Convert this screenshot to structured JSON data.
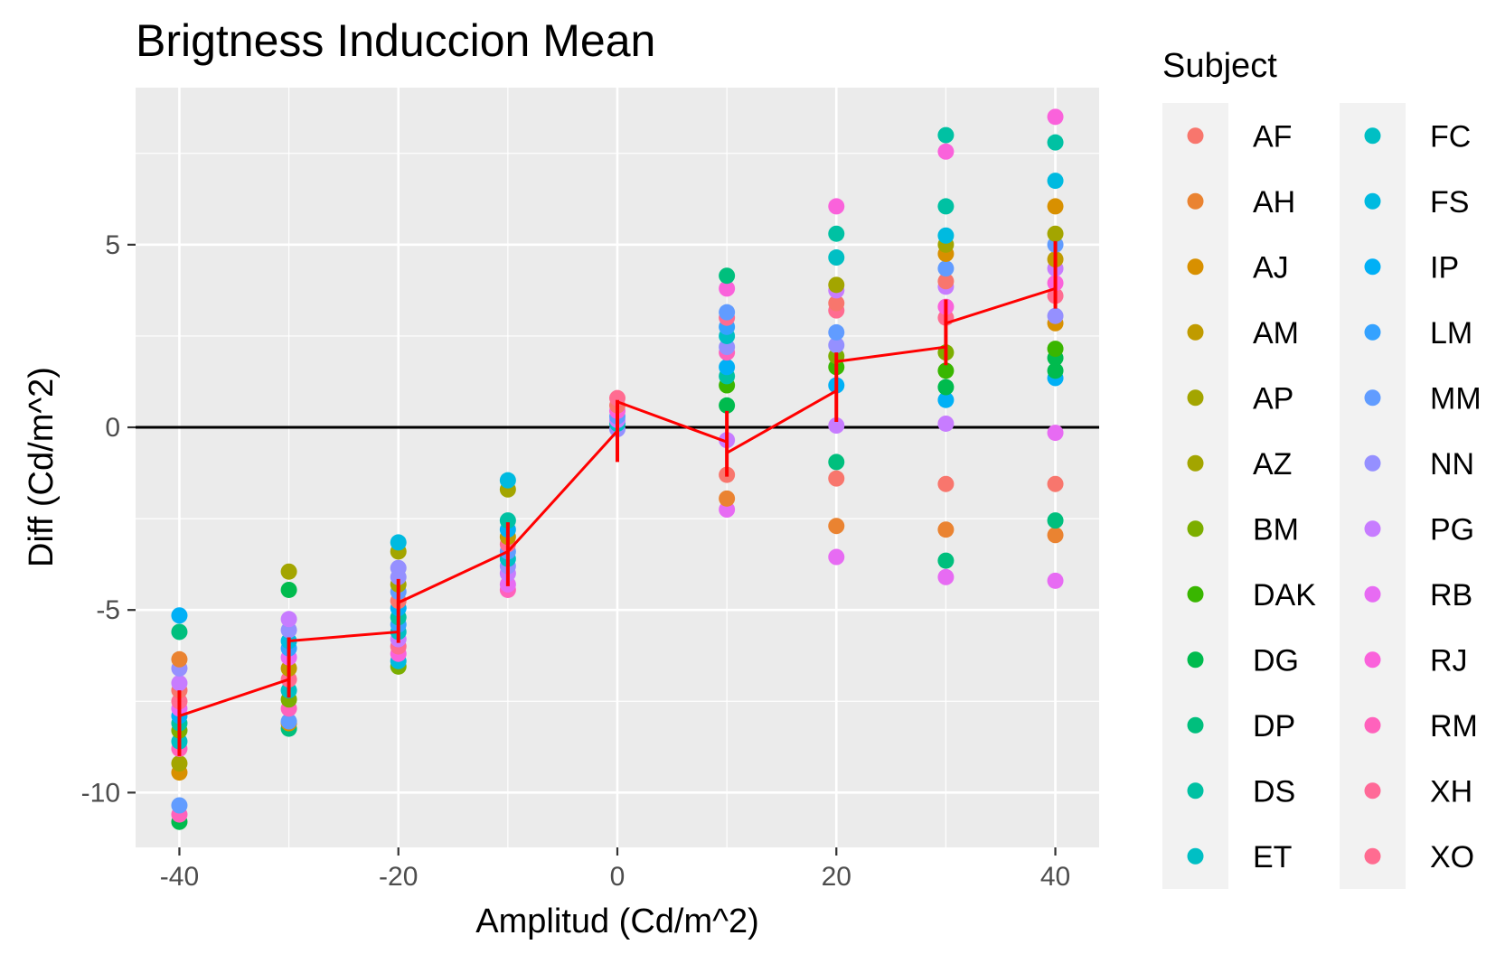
{
  "chart_data": {
    "type": "scatter",
    "title": "Brigtness Induccion Mean",
    "xlabel": "Amplitud (Cd/m^2)",
    "ylabel": "Diff (Cd/m^2)",
    "xlim": [
      -44,
      44
    ],
    "ylim": [
      -11.5,
      9.3
    ],
    "x_ticks": [
      -40,
      -20,
      0,
      20,
      40
    ],
    "x_tick_labels": [
      "-40",
      "-20",
      "0",
      "20",
      "40"
    ],
    "y_ticks": [
      -10,
      -5,
      0,
      5
    ],
    "y_tick_labels": [
      "-10",
      "-5",
      "0",
      "5"
    ],
    "grid": true,
    "reference_line_y": 0,
    "legend": {
      "title": "Subject",
      "placement": "right",
      "entries": [
        {
          "name": "AF",
          "color": "#F8766D"
        },
        {
          "name": "AH",
          "color": "#EA8331"
        },
        {
          "name": "AJ",
          "color": "#D89000"
        },
        {
          "name": "AM",
          "color": "#C09B00"
        },
        {
          "name": "AP",
          "color": "#A3A500"
        },
        {
          "name": "AZ",
          "color": "#A3A500"
        },
        {
          "name": "BM",
          "color": "#7CAE00"
        },
        {
          "name": "DAK",
          "color": "#39B600"
        },
        {
          "name": "DG",
          "color": "#00BB4E"
        },
        {
          "name": "DP",
          "color": "#00BF7D"
        },
        {
          "name": "DS",
          "color": "#00C1A3"
        },
        {
          "name": "ET",
          "color": "#00BFC4"
        },
        {
          "name": "FC",
          "color": "#00BFC4"
        },
        {
          "name": "FS",
          "color": "#00BAE0"
        },
        {
          "name": "IP",
          "color": "#00B0F6"
        },
        {
          "name": "LM",
          "color": "#35A2FF"
        },
        {
          "name": "MM",
          "color": "#619CFF"
        },
        {
          "name": "NN",
          "color": "#9590FF"
        },
        {
          "name": "PG",
          "color": "#C77CFF"
        },
        {
          "name": "RB",
          "color": "#E76BF3"
        },
        {
          "name": "RJ",
          "color": "#FA62DB"
        },
        {
          "name": "RM",
          "color": "#FF62BC"
        },
        {
          "name": "XH",
          "color": "#FF6A98"
        },
        {
          "name": "XO",
          "color": "#FF6C91"
        }
      ]
    },
    "points": [
      {
        "x": -40,
        "y": -10.8,
        "color": "#00BB4E"
      },
      {
        "x": -40,
        "y": -10.6,
        "color": "#FF62BC"
      },
      {
        "x": -40,
        "y": -10.35,
        "color": "#619CFF"
      },
      {
        "x": -40,
        "y": -9.45,
        "color": "#D89000"
      },
      {
        "x": -40,
        "y": -9.2,
        "color": "#A3A500"
      },
      {
        "x": -40,
        "y": -8.8,
        "color": "#FF62BC"
      },
      {
        "x": -40,
        "y": -8.6,
        "color": "#00BFC4"
      },
      {
        "x": -40,
        "y": -8.3,
        "color": "#7CAE00"
      },
      {
        "x": -40,
        "y": -8.1,
        "color": "#00C1A3"
      },
      {
        "x": -40,
        "y": -7.9,
        "color": "#00B0F6"
      },
      {
        "x": -40,
        "y": -7.7,
        "color": "#E76BF3"
      },
      {
        "x": -40,
        "y": -7.5,
        "color": "#FF6C91"
      },
      {
        "x": -40,
        "y": -7.2,
        "color": "#F8766D"
      },
      {
        "x": -40,
        "y": -7.0,
        "color": "#C77CFF"
      },
      {
        "x": -40,
        "y": -6.6,
        "color": "#9590FF"
      },
      {
        "x": -40,
        "y": -6.35,
        "color": "#EA8331"
      },
      {
        "x": -40,
        "y": -5.6,
        "color": "#00BF7D"
      },
      {
        "x": -40,
        "y": -5.15,
        "color": "#00B0F6"
      },
      {
        "x": -30,
        "y": -8.25,
        "color": "#00BF7D"
      },
      {
        "x": -30,
        "y": -8.1,
        "color": "#D89000"
      },
      {
        "x": -30,
        "y": -8.05,
        "color": "#619CFF"
      },
      {
        "x": -30,
        "y": -7.7,
        "color": "#FF62BC"
      },
      {
        "x": -30,
        "y": -7.45,
        "color": "#7CAE00"
      },
      {
        "x": -30,
        "y": -7.2,
        "color": "#00BFC4"
      },
      {
        "x": -30,
        "y": -6.9,
        "color": "#FF6C91"
      },
      {
        "x": -30,
        "y": -6.6,
        "color": "#C09B00"
      },
      {
        "x": -30,
        "y": -6.3,
        "color": "#E76BF3"
      },
      {
        "x": -30,
        "y": -6.05,
        "color": "#35A2FF"
      },
      {
        "x": -30,
        "y": -5.85,
        "color": "#00BAE0"
      },
      {
        "x": -30,
        "y": -5.55,
        "color": "#9590FF"
      },
      {
        "x": -30,
        "y": -5.25,
        "color": "#C77CFF"
      },
      {
        "x": -30,
        "y": -4.45,
        "color": "#00BB4E"
      },
      {
        "x": -30,
        "y": -3.95,
        "color": "#A3A500"
      },
      {
        "x": -20,
        "y": -6.55,
        "color": "#7CAE00"
      },
      {
        "x": -20,
        "y": -6.4,
        "color": "#00BAE0"
      },
      {
        "x": -20,
        "y": -6.2,
        "color": "#FA62DB"
      },
      {
        "x": -20,
        "y": -6.0,
        "color": "#FF6C91"
      },
      {
        "x": -20,
        "y": -5.8,
        "color": "#C77CFF"
      },
      {
        "x": -20,
        "y": -5.6,
        "color": "#00BFC4"
      },
      {
        "x": -20,
        "y": -5.4,
        "color": "#35A2FF"
      },
      {
        "x": -20,
        "y": -5.2,
        "color": "#00C1A3"
      },
      {
        "x": -20,
        "y": -4.95,
        "color": "#00B0F6"
      },
      {
        "x": -20,
        "y": -4.75,
        "color": "#F8766D"
      },
      {
        "x": -20,
        "y": -4.5,
        "color": "#619CFF"
      },
      {
        "x": -20,
        "y": -4.3,
        "color": "#A3A500"
      },
      {
        "x": -20,
        "y": -4.1,
        "color": "#9590FF"
      },
      {
        "x": -20,
        "y": -3.85,
        "color": "#9590FF"
      },
      {
        "x": -20,
        "y": -3.4,
        "color": "#A3A500"
      },
      {
        "x": -20,
        "y": -3.15,
        "color": "#00BAE0"
      },
      {
        "x": -10,
        "y": -4.45,
        "color": "#FF62BC"
      },
      {
        "x": -10,
        "y": -4.3,
        "color": "#E76BF3"
      },
      {
        "x": -10,
        "y": -4.0,
        "color": "#C77CFF"
      },
      {
        "x": -10,
        "y": -3.8,
        "color": "#9590FF"
      },
      {
        "x": -10,
        "y": -3.6,
        "color": "#00BFC4"
      },
      {
        "x": -10,
        "y": -3.4,
        "color": "#619CFF"
      },
      {
        "x": -10,
        "y": -3.2,
        "color": "#FF6C91"
      },
      {
        "x": -10,
        "y": -3.0,
        "color": "#C09B00"
      },
      {
        "x": -10,
        "y": -2.8,
        "color": "#00B0F6"
      },
      {
        "x": -10,
        "y": -2.55,
        "color": "#00C1A3"
      },
      {
        "x": -10,
        "y": -1.7,
        "color": "#A3A500"
      },
      {
        "x": -10,
        "y": -1.45,
        "color": "#00BAE0"
      },
      {
        "x": 0,
        "y": -0.05,
        "color": "#9590FF"
      },
      {
        "x": 0,
        "y": 0.1,
        "color": "#00BFC4"
      },
      {
        "x": 0,
        "y": 0.2,
        "color": "#C77CFF"
      },
      {
        "x": 0,
        "y": 0.3,
        "color": "#619CFF"
      },
      {
        "x": 0,
        "y": 0.45,
        "color": "#FA62DB"
      },
      {
        "x": 0,
        "y": 0.6,
        "color": "#F8766D"
      },
      {
        "x": 0,
        "y": 0.8,
        "color": "#FF6C91"
      },
      {
        "x": 10,
        "y": -2.25,
        "color": "#E76BF3"
      },
      {
        "x": 10,
        "y": -1.95,
        "color": "#EA8331"
      },
      {
        "x": 10,
        "y": -1.3,
        "color": "#F8766D"
      },
      {
        "x": 10,
        "y": -0.35,
        "color": "#C77CFF"
      },
      {
        "x": 10,
        "y": 0.6,
        "color": "#00BB4E"
      },
      {
        "x": 10,
        "y": 1.15,
        "color": "#39B600"
      },
      {
        "x": 10,
        "y": 1.4,
        "color": "#00C1A3"
      },
      {
        "x": 10,
        "y": 1.65,
        "color": "#00B0F6"
      },
      {
        "x": 10,
        "y": 2.05,
        "color": "#FF62BC"
      },
      {
        "x": 10,
        "y": 2.2,
        "color": "#9590FF"
      },
      {
        "x": 10,
        "y": 2.5,
        "color": "#00BFC4"
      },
      {
        "x": 10,
        "y": 2.75,
        "color": "#35A2FF"
      },
      {
        "x": 10,
        "y": 3.0,
        "color": "#FF6C91"
      },
      {
        "x": 10,
        "y": 3.15,
        "color": "#619CFF"
      },
      {
        "x": 10,
        "y": 3.8,
        "color": "#FA62DB"
      },
      {
        "x": 10,
        "y": 4.15,
        "color": "#00BF7D"
      },
      {
        "x": 20,
        "y": -3.55,
        "color": "#E76BF3"
      },
      {
        "x": 20,
        "y": -2.7,
        "color": "#EA8331"
      },
      {
        "x": 20,
        "y": -1.4,
        "color": "#F8766D"
      },
      {
        "x": 20,
        "y": -0.95,
        "color": "#00BF7D"
      },
      {
        "x": 20,
        "y": 0.05,
        "color": "#C77CFF"
      },
      {
        "x": 20,
        "y": 1.15,
        "color": "#00B0F6"
      },
      {
        "x": 20,
        "y": 1.65,
        "color": "#39B600"
      },
      {
        "x": 20,
        "y": 1.95,
        "color": "#7CAE00"
      },
      {
        "x": 20,
        "y": 2.25,
        "color": "#9590FF"
      },
      {
        "x": 20,
        "y": 2.6,
        "color": "#619CFF"
      },
      {
        "x": 20,
        "y": 3.2,
        "color": "#FF6C91"
      },
      {
        "x": 20,
        "y": 3.4,
        "color": "#F8766D"
      },
      {
        "x": 20,
        "y": 3.75,
        "color": "#C77CFF"
      },
      {
        "x": 20,
        "y": 3.9,
        "color": "#A3A500"
      },
      {
        "x": 20,
        "y": 4.65,
        "color": "#00BFC4"
      },
      {
        "x": 20,
        "y": 5.3,
        "color": "#00C1A3"
      },
      {
        "x": 20,
        "y": 6.05,
        "color": "#FA62DB"
      },
      {
        "x": 30,
        "y": -4.1,
        "color": "#E76BF3"
      },
      {
        "x": 30,
        "y": -3.65,
        "color": "#00BF7D"
      },
      {
        "x": 30,
        "y": -2.8,
        "color": "#EA8331"
      },
      {
        "x": 30,
        "y": -1.55,
        "color": "#F8766D"
      },
      {
        "x": 30,
        "y": 0.1,
        "color": "#C77CFF"
      },
      {
        "x": 30,
        "y": 0.75,
        "color": "#00B0F6"
      },
      {
        "x": 30,
        "y": 1.1,
        "color": "#00BB4E"
      },
      {
        "x": 30,
        "y": 1.55,
        "color": "#39B600"
      },
      {
        "x": 30,
        "y": 2.05,
        "color": "#7CAE00"
      },
      {
        "x": 30,
        "y": 3.0,
        "color": "#FF6C91"
      },
      {
        "x": 30,
        "y": 3.3,
        "color": "#FA62DB"
      },
      {
        "x": 30,
        "y": 3.85,
        "color": "#C77CFF"
      },
      {
        "x": 30,
        "y": 4.0,
        "color": "#F8766D"
      },
      {
        "x": 30,
        "y": 4.35,
        "color": "#619CFF"
      },
      {
        "x": 30,
        "y": 4.75,
        "color": "#D89000"
      },
      {
        "x": 30,
        "y": 5.0,
        "color": "#A3A500"
      },
      {
        "x": 30,
        "y": 5.25,
        "color": "#00BAE0"
      },
      {
        "x": 30,
        "y": 6.05,
        "color": "#00C1A3"
      },
      {
        "x": 30,
        "y": 7.55,
        "color": "#FA62DB"
      },
      {
        "x": 30,
        "y": 8.0,
        "color": "#00C1A3"
      },
      {
        "x": 40,
        "y": -4.2,
        "color": "#E76BF3"
      },
      {
        "x": 40,
        "y": -2.95,
        "color": "#EA8331"
      },
      {
        "x": 40,
        "y": -2.55,
        "color": "#00BF7D"
      },
      {
        "x": 40,
        "y": -1.55,
        "color": "#F8766D"
      },
      {
        "x": 40,
        "y": -0.15,
        "color": "#E76BF3"
      },
      {
        "x": 40,
        "y": 1.35,
        "color": "#00B0F6"
      },
      {
        "x": 40,
        "y": 1.55,
        "color": "#00BB4E"
      },
      {
        "x": 40,
        "y": 1.9,
        "color": "#00BB4E"
      },
      {
        "x": 40,
        "y": 2.15,
        "color": "#39B600"
      },
      {
        "x": 40,
        "y": 2.85,
        "color": "#D89000"
      },
      {
        "x": 40,
        "y": 3.05,
        "color": "#9590FF"
      },
      {
        "x": 40,
        "y": 3.6,
        "color": "#FF6C91"
      },
      {
        "x": 40,
        "y": 3.95,
        "color": "#FA62DB"
      },
      {
        "x": 40,
        "y": 4.35,
        "color": "#C77CFF"
      },
      {
        "x": 40,
        "y": 4.6,
        "color": "#C09B00"
      },
      {
        "x": 40,
        "y": 5.0,
        "color": "#619CFF"
      },
      {
        "x": 40,
        "y": 5.3,
        "color": "#A3A500"
      },
      {
        "x": 40,
        "y": 6.05,
        "color": "#D89000"
      },
      {
        "x": 40,
        "y": 6.75,
        "color": "#00BAE0"
      },
      {
        "x": 40,
        "y": 7.8,
        "color": "#00C1A3"
      },
      {
        "x": 40,
        "y": 8.5,
        "color": "#FA62DB"
      }
    ],
    "mean_series": {
      "color": "#FF0000",
      "points": [
        {
          "x": -40,
          "y": -7.9
        },
        {
          "x": -30,
          "y": -6.9
        },
        {
          "x": -30,
          "y": -5.85
        },
        {
          "x": -20,
          "y": -5.6
        },
        {
          "x": -20,
          "y": -4.8
        },
        {
          "x": -10,
          "y": -3.4
        },
        {
          "x": 0,
          "y": -0.1
        },
        {
          "x": 0,
          "y": 0.7
        },
        {
          "x": 10,
          "y": -0.4
        },
        {
          "x": 10,
          "y": -0.7
        },
        {
          "x": 20,
          "y": 1.0
        },
        {
          "x": 20,
          "y": 1.8
        },
        {
          "x": 30,
          "y": 2.2
        },
        {
          "x": 30,
          "y": 2.85
        },
        {
          "x": 40,
          "y": 3.8
        }
      ]
    },
    "error_bars": [
      {
        "x": -40,
        "low": -9.0,
        "high": -7.2
      },
      {
        "x": -30,
        "low": -7.4,
        "high": -5.75
      },
      {
        "x": -20,
        "low": -5.9,
        "high": -4.15
      },
      {
        "x": -10,
        "low": -4.35,
        "high": -2.6
      },
      {
        "x": 0,
        "low": -0.95,
        "high": 0.75
      },
      {
        "x": 10,
        "low": -1.35,
        "high": 0.45
      },
      {
        "x": 20,
        "low": 0.15,
        "high": 2.05
      },
      {
        "x": 30,
        "low": 1.7,
        "high": 3.5
      },
      {
        "x": 40,
        "low": 3.25,
        "high": 5.1
      }
    ]
  }
}
